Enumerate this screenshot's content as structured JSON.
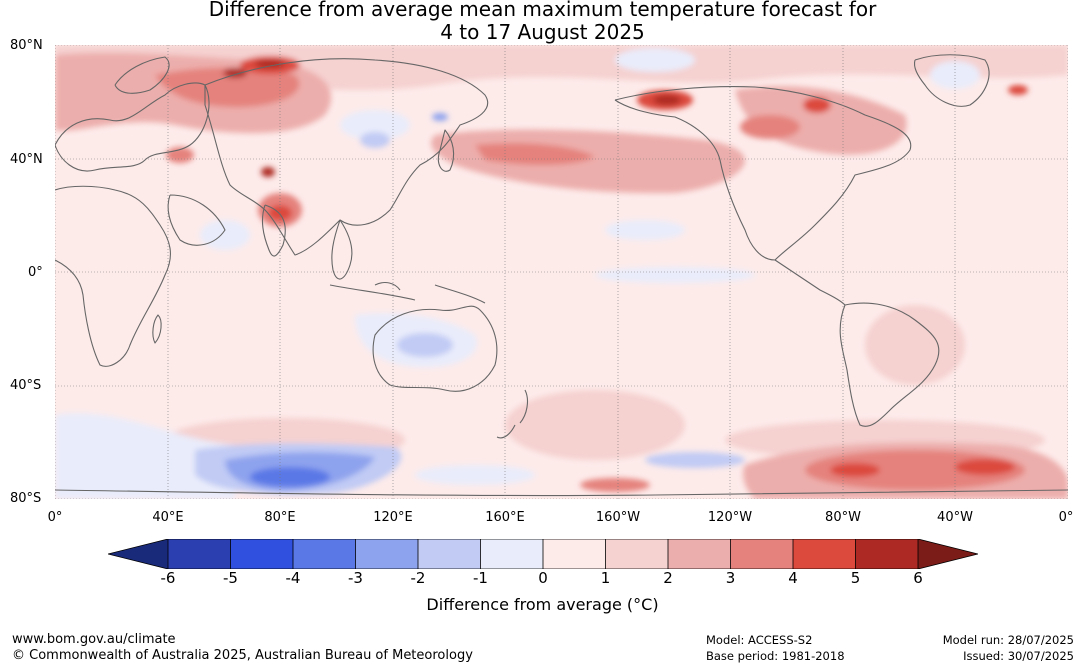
{
  "title": {
    "line1": "Difference from average mean maximum temperature forecast for",
    "line2": "4 to 17 August 2025"
  },
  "map": {
    "lat_labels": [
      "80°N",
      "40°N",
      "0°",
      "40°S",
      "80°S"
    ],
    "lon_labels": [
      "0°",
      "40°E",
      "80°E",
      "120°E",
      "160°E",
      "160°W",
      "120°W",
      "80°W",
      "40°W",
      "0°"
    ],
    "gridlines": true
  },
  "colorbar": {
    "ticks": [
      "-6",
      "-5",
      "-4",
      "-3",
      "-2",
      "-1",
      "0",
      "1",
      "2",
      "3",
      "4",
      "5",
      "6"
    ],
    "colors": {
      "lt_-6": "#1a2a7a",
      "-6_-5": "#2b3fb0",
      "-5_-4": "#3050e0",
      "-4_-3": "#5a78e6",
      "-3_-2": "#8ea3ee",
      "-2_-1": "#c1cbf4",
      "-1_0": "#e9ecfb",
      "0_1": "#fdebea",
      "1_2": "#f5d1d0",
      "2_3": "#ecaeac",
      "3_4": "#e5827d",
      "4_5": "#dc4a3e",
      "5_6": "#ad2a24",
      "gt_6": "#7b1c18"
    },
    "label": "Difference from average (°C)"
  },
  "footer": {
    "website": "www.bom.gov.au/climate",
    "copyright": "© Commonwealth of Australia 2025, Australian Bureau of Meteorology",
    "model": "Model: ACCESS-S2",
    "base_period": "Base period: 1981-2018",
    "model_run": "Model run: 28/07/2025",
    "issued": "Issued: 30/07/2025"
  }
}
